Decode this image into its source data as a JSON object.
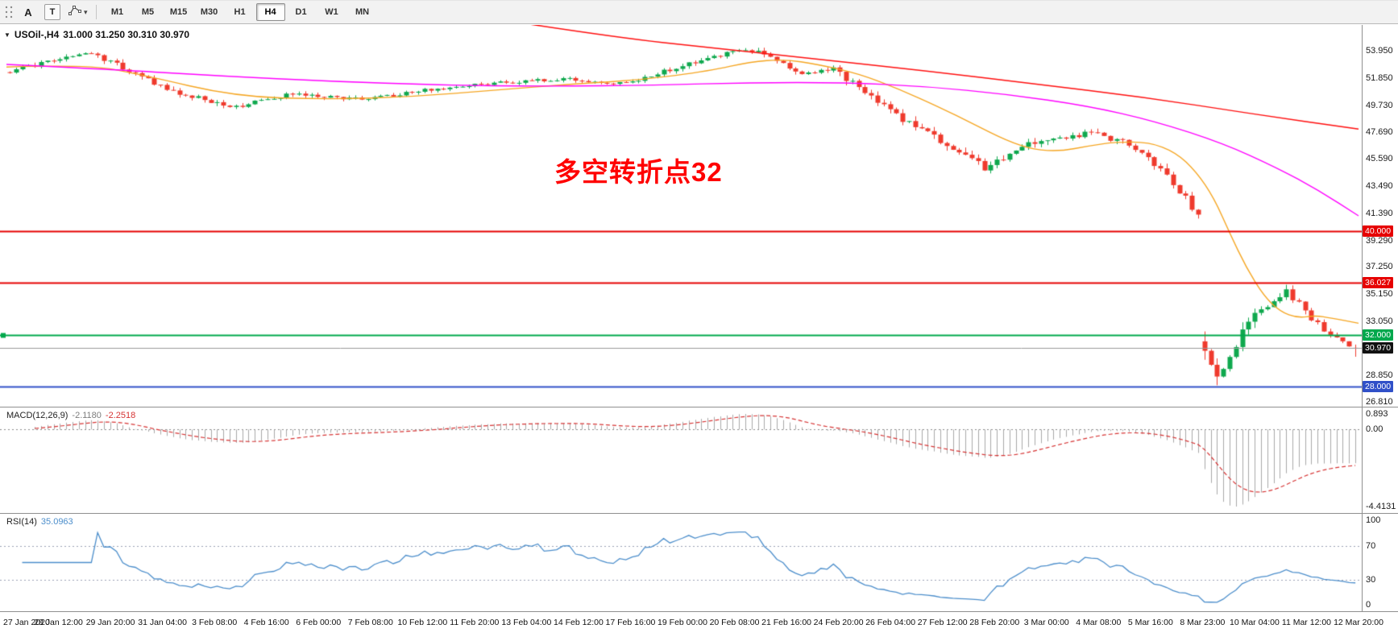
{
  "toolbar": {
    "a_label": "A",
    "t_label": "T",
    "timeframes": [
      {
        "label": "M1",
        "selected": false
      },
      {
        "label": "M5",
        "selected": false
      },
      {
        "label": "M15",
        "selected": false
      },
      {
        "label": "M30",
        "selected": false
      },
      {
        "label": "H1",
        "selected": false
      },
      {
        "label": "H4",
        "selected": true
      },
      {
        "label": "D1",
        "selected": false
      },
      {
        "label": "W1",
        "selected": false
      },
      {
        "label": "MN",
        "selected": false
      }
    ]
  },
  "chart": {
    "header": {
      "marker": "▼",
      "symbol_period": "USOil-,H4",
      "ohlc": "31.000 31.250 30.310 30.970"
    },
    "annotation": {
      "text": "多空转折点32",
      "color": "#ff0000"
    },
    "price_axis": {
      "range": {
        "max": 55.95,
        "min": 26.45
      },
      "labels": [
        {
          "text": "53.950",
          "value": 53.95
        },
        {
          "text": "51.850",
          "value": 51.85
        },
        {
          "text": "49.730",
          "value": 49.73
        },
        {
          "text": "47.690",
          "value": 47.69
        },
        {
          "text": "45.590",
          "value": 45.59
        },
        {
          "text": "43.490",
          "value": 43.49
        },
        {
          "text": "41.390",
          "value": 41.39
        },
        {
          "text": "39.290",
          "value": 39.29
        },
        {
          "text": "37.250",
          "value": 37.25
        },
        {
          "text": "35.150",
          "value": 35.15
        },
        {
          "text": "33.050",
          "value": 33.05
        },
        {
          "text": "28.850",
          "value": 28.85
        },
        {
          "text": "26.810",
          "value": 26.81
        }
      ]
    },
    "hlines": [
      {
        "name": "level-40",
        "value": 40.0,
        "label": "40.000",
        "color": "#e60000",
        "tag_bg": "#e60000"
      },
      {
        "name": "level-36",
        "value": 36.027,
        "label": "36.027",
        "color": "#e60000",
        "tag_bg": "#e60000"
      },
      {
        "name": "level-32",
        "value": 32.0,
        "label": "32.000",
        "color": "#00a84c",
        "tag_bg": "#00a84c",
        "left_marker": true
      },
      {
        "name": "level-28",
        "value": 28.0,
        "label": "28.000",
        "color": "#3050c8",
        "tag_bg": "#3050c8"
      }
    ],
    "current_price": {
      "value": 30.97,
      "label": "30.970",
      "line_color": "#9a9a9a",
      "tag_bg": "#111111"
    },
    "time_axis": [
      "27 Jan 2020",
      "28 Jan 12:00",
      "29 Jan 20:00",
      "31 Jan 04:00",
      "3 Feb 08:00",
      "4 Feb 16:00",
      "6 Feb 00:00",
      "7 Feb 08:00",
      "10 Feb 12:00",
      "11 Feb 20:00",
      "13 Feb 04:00",
      "14 Feb 12:00",
      "17 Feb 16:00",
      "19 Feb 00:00",
      "20 Feb 08:00",
      "21 Feb 16:00",
      "24 Feb 20:00",
      "26 Feb 04:00",
      "27 Feb 12:00",
      "28 Feb 20:00",
      "3 Mar 00:00",
      "4 Mar 08:00",
      "5 Mar 16:00",
      "8 Mar 23:00",
      "10 Mar 04:00",
      "11 Mar 12:00",
      "12 Mar 20:00"
    ]
  },
  "macd_pane": {
    "label": "MACD(12,26,9)",
    "value_main": "-2.1180",
    "value_signal": "-2.2518",
    "range": {
      "max": 0.893,
      "min": -4.4131
    },
    "axis_labels": [
      {
        "text": "0.893",
        "value": 0.893
      },
      {
        "text": "0.00",
        "value": 0.0
      },
      {
        "text": "-4.4131",
        "value": -4.4131
      }
    ],
    "hist_color": "#a9a9a9",
    "signal_color": "#d63434"
  },
  "rsi_pane": {
    "label": "RSI(14)",
    "value": "35.0963",
    "range": {
      "max": 100,
      "min": 0
    },
    "levels": [
      70,
      30
    ],
    "axis_labels": [
      {
        "text": "100",
        "value": 100
      },
      {
        "text": "70",
        "value": 70
      },
      {
        "text": "30",
        "value": 30
      },
      {
        "text": "0",
        "value": 0
      }
    ],
    "line_color": "#4c8ecb",
    "level_color": "#9aa0b4"
  },
  "chart_data": {
    "type": "candlestick",
    "symbol": "USOil",
    "timeframe": "H4",
    "ohlc_current": {
      "open": 31.0,
      "high": 31.25,
      "low": 30.31,
      "close": 30.97
    },
    "seed": 20200312,
    "candle_colors": {
      "up": "#0fa84e",
      "down": "#ef3a2d"
    },
    "price_path_segments": [
      {
        "from": 52.3,
        "to": 53.8,
        "n": 14,
        "vol": 0.3
      },
      {
        "from": 53.8,
        "to": 50.8,
        "n": 13,
        "vol": 0.38
      },
      {
        "from": 50.8,
        "to": 49.6,
        "n": 10,
        "vol": 0.35
      },
      {
        "from": 49.6,
        "to": 50.6,
        "n": 8,
        "vol": 0.3
      },
      {
        "from": 50.6,
        "to": 50.2,
        "n": 12,
        "vol": 0.28
      },
      {
        "from": 50.2,
        "to": 51.3,
        "n": 16,
        "vol": 0.26
      },
      {
        "from": 51.3,
        "to": 51.8,
        "n": 16,
        "vol": 0.26
      },
      {
        "from": 51.8,
        "to": 51.4,
        "n": 10,
        "vol": 0.28
      },
      {
        "from": 51.4,
        "to": 53.6,
        "n": 14,
        "vol": 0.3
      },
      {
        "from": 53.6,
        "to": 54.0,
        "n": 6,
        "vol": 0.32
      },
      {
        "from": 54.0,
        "to": 52.2,
        "n": 8,
        "vol": 0.38
      },
      {
        "from": 52.2,
        "to": 52.6,
        "n": 5,
        "vol": 0.3
      },
      {
        "from": 52.6,
        "to": 49.2,
        "n": 9,
        "vol": 0.5
      },
      {
        "from": 49.2,
        "to": 47.0,
        "n": 8,
        "vol": 0.55
      },
      {
        "from": 47.0,
        "to": 44.9,
        "n": 7,
        "vol": 0.55
      },
      {
        "from": 44.9,
        "to": 46.9,
        "n": 8,
        "vol": 0.48
      },
      {
        "from": 46.9,
        "to": 47.6,
        "n": 9,
        "vol": 0.45
      },
      {
        "from": 47.6,
        "to": 46.8,
        "n": 6,
        "vol": 0.45
      },
      {
        "from": 46.8,
        "to": 44.9,
        "n": 5,
        "vol": 0.5
      },
      {
        "from": 44.9,
        "to": 41.3,
        "n": 6,
        "vol": 0.6
      },
      {
        "from": 31.5,
        "to": 28.6,
        "n": 3,
        "vol": 1.1,
        "gap": true
      },
      {
        "from": 28.6,
        "to": 33.8,
        "n": 6,
        "vol": 0.85
      },
      {
        "from": 33.8,
        "to": 35.5,
        "n": 5,
        "vol": 0.75
      },
      {
        "from": 35.5,
        "to": 32.3,
        "n": 6,
        "vol": 0.6
      },
      {
        "from": 32.3,
        "to": 30.97,
        "n": 5,
        "vol": 0.45
      }
    ],
    "overlays": [
      {
        "name": "ma-fast-orange",
        "color": "#f5a623",
        "width": 1.4,
        "points": [
          [
            0,
            52.7
          ],
          [
            0.06,
            52.9
          ],
          [
            0.1,
            52.1
          ],
          [
            0.17,
            50.4
          ],
          [
            0.24,
            50.2
          ],
          [
            0.3,
            50.4
          ],
          [
            0.36,
            50.9
          ],
          [
            0.42,
            51.4
          ],
          [
            0.47,
            51.7
          ],
          [
            0.52,
            52.4
          ],
          [
            0.55,
            53.1
          ],
          [
            0.575,
            53.3
          ],
          [
            0.6,
            52.9
          ],
          [
            0.63,
            52.2
          ],
          [
            0.66,
            51.0
          ],
          [
            0.69,
            49.6
          ],
          [
            0.715,
            48.3
          ],
          [
            0.74,
            47.0
          ],
          [
            0.76,
            46.3
          ],
          [
            0.78,
            46.2
          ],
          [
            0.8,
            46.6
          ],
          [
            0.82,
            46.9
          ],
          [
            0.845,
            46.9
          ],
          [
            0.865,
            46.1
          ],
          [
            0.88,
            44.6
          ],
          [
            0.893,
            42.6
          ],
          [
            0.905,
            39.8
          ],
          [
            0.917,
            37.2
          ],
          [
            0.93,
            35.0
          ],
          [
            0.942,
            33.8
          ],
          [
            0.955,
            33.3
          ],
          [
            0.968,
            33.5
          ],
          [
            0.98,
            33.3
          ],
          [
            1,
            32.9
          ]
        ]
      },
      {
        "name": "ma-mid-magenta",
        "color": "#ff00ff",
        "width": 1.4,
        "points": [
          [
            0,
            52.9
          ],
          [
            0.08,
            52.5
          ],
          [
            0.16,
            52.0
          ],
          [
            0.24,
            51.6
          ],
          [
            0.32,
            51.3
          ],
          [
            0.4,
            51.2
          ],
          [
            0.48,
            51.3
          ],
          [
            0.55,
            51.5
          ],
          [
            0.62,
            51.5
          ],
          [
            0.68,
            51.2
          ],
          [
            0.74,
            50.6
          ],
          [
            0.8,
            49.7
          ],
          [
            0.85,
            48.5
          ],
          [
            0.9,
            46.8
          ],
          [
            0.94,
            44.9
          ],
          [
            0.97,
            43.2
          ],
          [
            1,
            41.2
          ]
        ]
      },
      {
        "name": "ma-slow-red",
        "color": "#ff0f0f",
        "width": 1.5,
        "points": [
          [
            0.375,
            56.2
          ],
          [
            0.45,
            55.0
          ],
          [
            0.52,
            54.2
          ],
          [
            0.6,
            53.3
          ],
          [
            0.68,
            52.4
          ],
          [
            0.76,
            51.4
          ],
          [
            0.84,
            50.4
          ],
          [
            0.92,
            49.1
          ],
          [
            1,
            47.9
          ]
        ]
      }
    ],
    "indicators": {
      "macd": {
        "fast": 12,
        "slow": 26,
        "signal": 9,
        "display_main": -2.118,
        "display_signal": -2.2518
      },
      "rsi": {
        "period": 14,
        "display": 35.0963
      }
    }
  }
}
